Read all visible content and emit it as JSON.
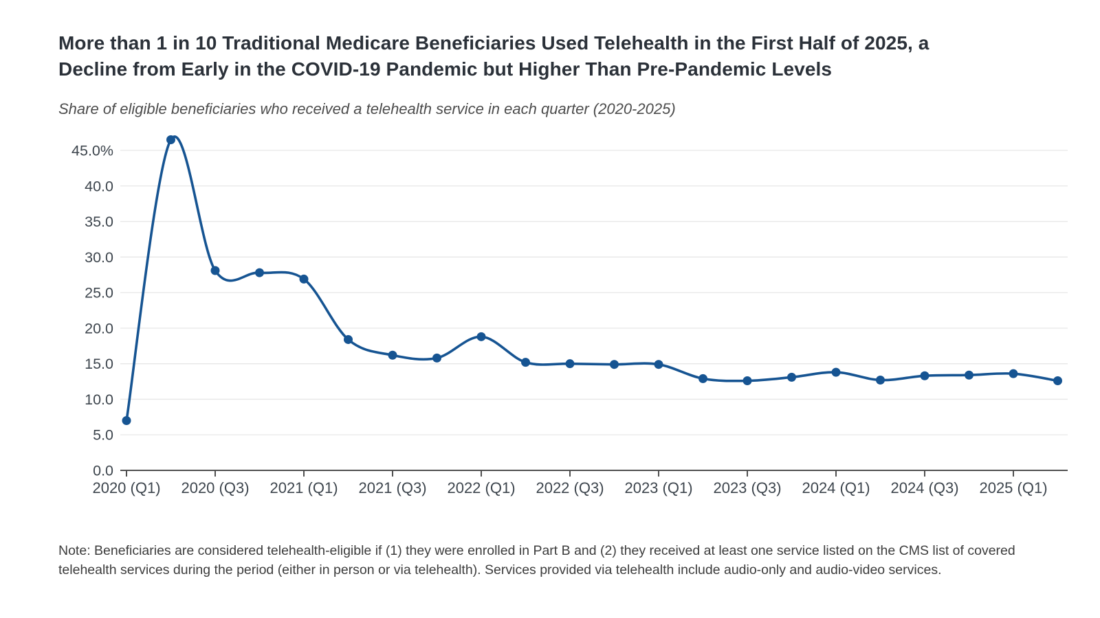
{
  "header": {
    "title_line1": "More than 1 in 10 Traditional Medicare Beneficiaries Used Telehealth in the First Half of 2025, a",
    "title_line2": "Decline from Early in the COVID-19 Pandemic but Higher Than Pre-Pandemic Levels",
    "subtitle": "Share of eligible beneficiaries who received a telehealth service in each quarter (2020-2025)"
  },
  "note": {
    "text": "Note: Beneficiaries are considered telehealth-eligible if (1) they were enrolled in Part B and (2) they received at least one service listed on the CMS list of covered telehealth services during the period (either in person or via telehealth). Services provided via telehealth include audio-only and audio-video services."
  },
  "chart_data": {
    "type": "line",
    "title": "Share of eligible beneficiaries who received a telehealth service in each quarter (2020-2025)",
    "categories": [
      "2020 (Q1)",
      "2020 (Q2)",
      "2020 (Q3)",
      "2020 (Q4)",
      "2021 (Q1)",
      "2021 (Q2)",
      "2021 (Q3)",
      "2021 (Q4)",
      "2022 (Q1)",
      "2022 (Q2)",
      "2022 (Q3)",
      "2022 (Q4)",
      "2023 (Q1)",
      "2023 (Q2)",
      "2023 (Q3)",
      "2023 (Q4)",
      "2024 (Q1)",
      "2024 (Q2)",
      "2024 (Q3)",
      "2024 (Q4)",
      "2025 (Q1)",
      "2025 (Q2)"
    ],
    "values": [
      7.0,
      46.5,
      28.1,
      27.8,
      26.9,
      18.4,
      16.2,
      15.8,
      18.8,
      15.2,
      15.0,
      14.9,
      14.9,
      12.9,
      12.6,
      13.1,
      13.8,
      12.7,
      13.3,
      13.4,
      13.6,
      12.6
    ],
    "x_tick_labels": [
      "2020 (Q1)",
      "2020 (Q3)",
      "2021 (Q1)",
      "2021 (Q3)",
      "2022 (Q1)",
      "2022 (Q3)",
      "2023 (Q1)",
      "2023 (Q3)",
      "2024 (Q1)",
      "2024 (Q3)",
      "2025 (Q1)"
    ],
    "x_tick_every": 2,
    "y_tick_values": [
      0,
      5,
      10,
      15,
      20,
      25,
      30,
      35,
      40,
      45
    ],
    "y_tick_labels": [
      "0.0",
      "5.0",
      "10.0",
      "15.0",
      "20.0",
      "25.0",
      "30.0",
      "35.0",
      "40.0",
      "45.0%"
    ],
    "ylim": [
      0,
      47
    ],
    "grid": "horizontal",
    "legend": "none",
    "colors": {
      "line": "#165492",
      "marker": "#165492",
      "grid": "#e7e7e7",
      "axis": "#4f4f4f",
      "tick_label": "#3d454d"
    }
  }
}
